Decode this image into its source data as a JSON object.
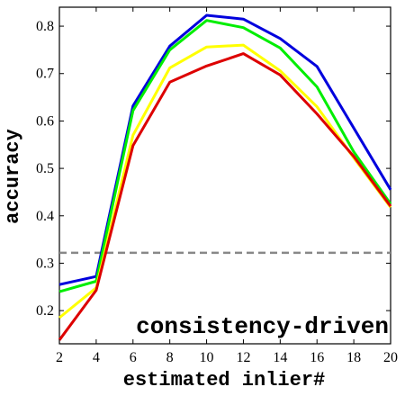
{
  "chart_data": {
    "type": "line",
    "xlabel": "estimated inlier#",
    "ylabel": "accuracy",
    "annotation": "consistency-driven",
    "x": [
      2,
      4,
      6,
      8,
      10,
      12,
      14,
      16,
      18,
      20
    ],
    "xticks": [
      2,
      4,
      6,
      8,
      10,
      12,
      14,
      16,
      18,
      20
    ],
    "yticks": [
      0.2,
      0.3,
      0.4,
      0.5,
      0.6,
      0.7,
      0.8
    ],
    "xlim": [
      2,
      20
    ],
    "ylim": [
      0.13,
      0.84
    ],
    "grid": false,
    "legend": "none",
    "series": [
      {
        "color": "#0000dd",
        "values": [
          0.255,
          0.272,
          0.632,
          0.758,
          0.823,
          0.815,
          0.774,
          0.715,
          0.585,
          0.455
        ]
      },
      {
        "color": "#00ee00",
        "values": [
          0.24,
          0.262,
          0.622,
          0.75,
          0.812,
          0.797,
          0.754,
          0.672,
          0.535,
          0.425
        ]
      },
      {
        "color": "#ffff00",
        "values": [
          0.185,
          0.248,
          0.57,
          0.712,
          0.756,
          0.76,
          0.706,
          0.63,
          0.522,
          0.418
        ]
      },
      {
        "color": "#dd0000",
        "values": [
          0.138,
          0.243,
          0.548,
          0.682,
          0.716,
          0.742,
          0.697,
          0.615,
          0.525,
          0.42
        ]
      }
    ],
    "baseline": {
      "value": 0.322,
      "color": "#888888",
      "style": "dashed"
    }
  }
}
